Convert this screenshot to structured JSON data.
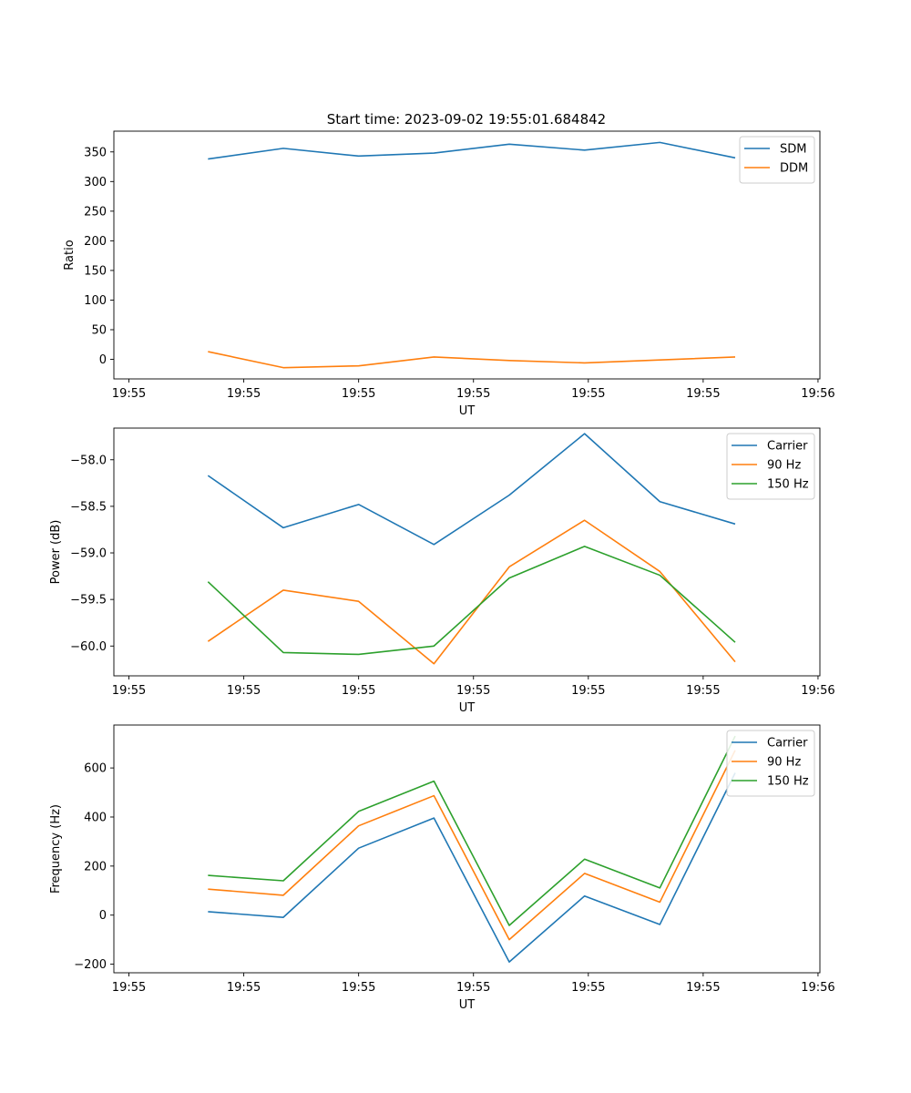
{
  "figure": {
    "title": "Start time: 2023-09-02 19:55:01.684842"
  },
  "colors": {
    "blue": "#1f77b4",
    "orange": "#ff7f0e",
    "green": "#2ca02c"
  },
  "chart_data": [
    {
      "type": "line",
      "title": "Start time: 2023-09-02 19:55:01.684842",
      "xlabel": "UT",
      "ylabel": "Ratio",
      "x": [
        0.4,
        1.2,
        2.0,
        2.8,
        3.6,
        4.4,
        5.2,
        6.0
      ],
      "xlim": [
        -0.6,
        6.9
      ],
      "x_tick_positions": [
        -0.44,
        0.78,
        2.0,
        3.22,
        4.44,
        5.66,
        6.88
      ],
      "x_tick_labels": [
        "19:55",
        "19:55",
        "19:55",
        "19:55",
        "19:55",
        "19:55",
        "19:56"
      ],
      "ylim": [
        -33,
        385
      ],
      "y_ticks": [
        0,
        50,
        100,
        150,
        200,
        250,
        300,
        350
      ],
      "y_tick_labels": [
        "0",
        "50",
        "100",
        "150",
        "200",
        "250",
        "300",
        "350"
      ],
      "legend_position": "top-right",
      "series": [
        {
          "name": "SDM",
          "color": "#1f77b4",
          "values": [
            338,
            356,
            343,
            348,
            363,
            353,
            366,
            340
          ]
        },
        {
          "name": "DDM",
          "color": "#ff7f0e",
          "values": [
            13,
            -14,
            -11,
            4,
            -2,
            -6,
            -1,
            4
          ]
        }
      ]
    },
    {
      "type": "line",
      "title": "",
      "xlabel": "UT",
      "ylabel": "Power (dB)",
      "x": [
        0.4,
        1.2,
        2.0,
        2.8,
        3.6,
        4.4,
        5.2,
        6.0
      ],
      "xlim": [
        -0.6,
        6.9
      ],
      "x_tick_positions": [
        -0.44,
        0.78,
        2.0,
        3.22,
        4.44,
        5.66,
        6.88
      ],
      "x_tick_labels": [
        "19:55",
        "19:55",
        "19:55",
        "19:55",
        "19:55",
        "19:55",
        "19:56"
      ],
      "ylim": [
        -60.32,
        -57.66
      ],
      "y_ticks": [
        -60.0,
        -59.5,
        -59.0,
        -58.5,
        -58.0
      ],
      "y_tick_labels": [
        "−60.0",
        "−59.5",
        "−59.0",
        "−58.5",
        "−58.0"
      ],
      "legend_position": "top-right",
      "series": [
        {
          "name": "Carrier",
          "color": "#1f77b4",
          "values": [
            -58.17,
            -58.73,
            -58.48,
            -58.91,
            -58.38,
            -57.72,
            -58.45,
            -58.69
          ]
        },
        {
          "name": "90 Hz",
          "color": "#ff7f0e",
          "values": [
            -59.95,
            -59.4,
            -59.52,
            -60.19,
            -59.15,
            -58.65,
            -59.2,
            -60.17
          ]
        },
        {
          "name": "150 Hz",
          "color": "#2ca02c",
          "values": [
            -59.31,
            -60.07,
            -60.09,
            -60.0,
            -59.27,
            -58.93,
            -59.24,
            -59.96
          ]
        }
      ]
    },
    {
      "type": "line",
      "title": "",
      "xlabel": "UT",
      "ylabel": "Frequency (Hz)",
      "x": [
        0.4,
        1.2,
        2.0,
        2.8,
        3.6,
        4.4,
        5.2,
        6.0
      ],
      "xlim": [
        -0.6,
        6.9
      ],
      "x_tick_positions": [
        -0.44,
        0.78,
        2.0,
        3.22,
        4.44,
        5.66,
        6.88
      ],
      "x_tick_labels": [
        "19:55",
        "19:55",
        "19:55",
        "19:55",
        "19:55",
        "19:55",
        "19:56"
      ],
      "ylim": [
        -235,
        775
      ],
      "y_ticks": [
        -200,
        0,
        200,
        400,
        600
      ],
      "y_tick_labels": [
        "−200",
        "0",
        "200",
        "400",
        "600"
      ],
      "legend_position": "top-right",
      "series": [
        {
          "name": "Carrier",
          "color": "#1f77b4",
          "values": [
            14,
            -9,
            273,
            396,
            -191,
            78,
            -38,
            580
          ]
        },
        {
          "name": "90 Hz",
          "color": "#ff7f0e",
          "values": [
            106,
            81,
            364,
            487,
            -100,
            170,
            53,
            672
          ]
        },
        {
          "name": "150 Hz",
          "color": "#2ca02c",
          "values": [
            162,
            140,
            423,
            546,
            -42,
            228,
            111,
            730
          ]
        }
      ]
    }
  ]
}
